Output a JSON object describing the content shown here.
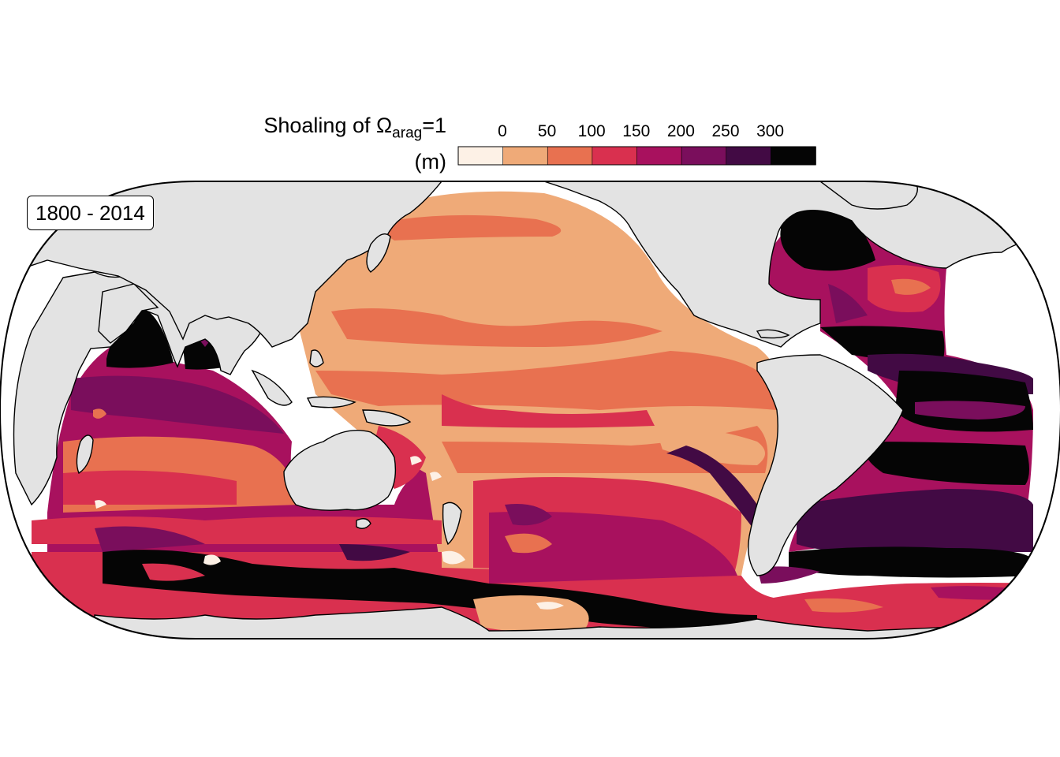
{
  "legend": {
    "title_prefix": "Shoaling of ",
    "title_symbol": "Ω",
    "title_subscript": "arag",
    "title_suffix": "=1",
    "unit": "(m)",
    "ticks": [
      "0",
      "50",
      "100",
      "150",
      "200",
      "250",
      "300"
    ],
    "colors": [
      "#fdf1e6",
      "#efaa78",
      "#e87150",
      "#d9304f",
      "#a8115e",
      "#7a0e5c",
      "#420a44",
      "#050505"
    ]
  },
  "period_label": "1800 - 2014",
  "map": {
    "land_color": "#e3e3e3",
    "coast_color": "#000000",
    "unmasked_color": "#ffffff",
    "projection": "equal-earth pacific-centered"
  }
}
